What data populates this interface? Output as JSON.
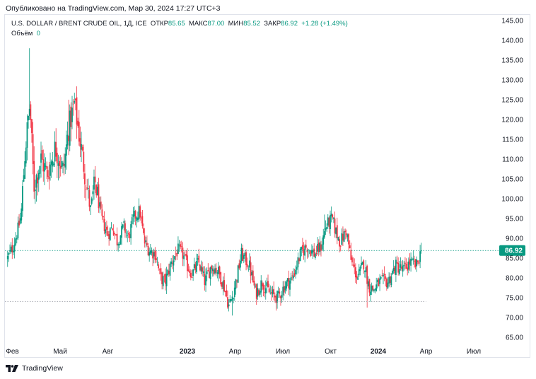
{
  "publication": {
    "text": "Опубликовано на TradingView.com, Мар 30, 2024 17:27 UTC+3"
  },
  "legend": {
    "symbol": "U.S. DOLLAR / BRENT CRUDE OIL, 1Д, ICE",
    "open_label": "ОТКР",
    "open": "85.65",
    "high_label": "МАКС",
    "high": "87.00",
    "low_label": "МИН",
    "low": "85.52",
    "close_label": "ЗАКР",
    "close": "86.92",
    "change": "+1.28 (+1.49%)",
    "volume_label": "Объём",
    "volume": "0"
  },
  "footer": {
    "brand": "TradingView"
  },
  "colors": {
    "up": "#089981",
    "down": "#f23645",
    "price_line": "#089981",
    "axis_text": "#131722"
  },
  "chart_data": {
    "type": "candlestick",
    "title": "U.S. DOLLAR / BRENT CRUDE OIL, 1Д, ICE",
    "ylim": [
      62,
      147
    ],
    "y_ticks": [
      "145.00",
      "140.00",
      "135.00",
      "130.00",
      "125.00",
      "120.00",
      "115.00",
      "110.00",
      "105.00",
      "100.00",
      "95.00",
      "90.00",
      "85.00",
      "80.00",
      "75.00",
      "70.00",
      "65.00"
    ],
    "y_tick_values": [
      145,
      140,
      135,
      130,
      125,
      120,
      115,
      110,
      105,
      100,
      95,
      90,
      85,
      80,
      75,
      70,
      65
    ],
    "x_ticks": [
      {
        "label": "Фев",
        "t": 0.3,
        "bold": false
      },
      {
        "label": "Май",
        "t": 3.3,
        "bold": false
      },
      {
        "label": "Авг",
        "t": 6.3,
        "bold": false
      },
      {
        "label": "2023",
        "t": 11.3,
        "bold": true
      },
      {
        "label": "Апр",
        "t": 14.3,
        "bold": false
      },
      {
        "label": "Июл",
        "t": 17.3,
        "bold": false
      },
      {
        "label": "Окт",
        "t": 20.3,
        "bold": false
      },
      {
        "label": "2024",
        "t": 23.3,
        "bold": true
      },
      {
        "label": "Апр",
        "t": 26.3,
        "bold": false
      },
      {
        "label": "Июл",
        "t": 29.3,
        "bold": false
      }
    ],
    "last_price": 86.92,
    "last_price_label": "86.92",
    "support_level": 74,
    "support_end_t": 26.3,
    "keypoints_t": [
      0.0,
      0.35,
      0.7,
      0.85,
      1.1,
      1.4,
      1.65,
      2.1,
      2.5,
      3.0,
      3.5,
      3.85,
      4.2,
      4.5,
      4.8,
      5.2,
      5.5,
      5.9,
      6.3,
      6.6,
      6.9,
      7.3,
      7.6,
      7.9,
      8.3,
      8.6,
      8.9,
      9.3,
      9.6,
      9.9,
      10.3,
      10.7,
      11.0,
      11.3,
      11.6,
      12.0,
      12.4,
      12.8,
      13.2,
      13.6,
      13.9,
      14.1,
      14.4,
      14.7,
      15.2,
      15.6,
      16.0,
      16.5,
      17.0,
      17.4,
      17.9,
      18.4,
      18.8,
      19.3,
      19.7,
      20.0,
      20.4,
      20.6,
      20.9,
      21.3,
      21.6,
      22.0,
      22.4,
      22.7,
      23.0,
      23.4,
      23.9,
      24.4,
      24.9,
      25.3,
      25.7,
      26.0
    ],
    "keypoints_close": [
      85,
      88,
      93,
      96,
      112,
      124,
      103,
      110,
      106,
      113,
      107,
      118,
      124,
      116,
      108,
      97,
      104,
      95,
      91,
      93,
      89,
      93,
      90,
      95,
      97,
      89,
      87,
      86,
      80,
      79,
      84,
      87,
      86,
      83,
      81,
      84,
      79,
      83,
      82,
      78,
      73,
      75,
      80,
      86,
      83,
      76,
      79,
      76,
      75,
      78,
      80,
      86,
      88,
      86,
      88,
      93,
      95,
      92,
      89,
      92,
      84,
      80,
      84,
      78,
      77,
      79,
      79,
      83,
      82,
      84,
      83,
      86.92
    ],
    "notable_highs": [
      {
        "t": 1.4,
        "high": 138
      },
      {
        "t": 3.85,
        "high": 125
      },
      {
        "t": 19.9,
        "high": 96
      }
    ],
    "notable_lows": [
      {
        "t": 14.1,
        "low": 70.5
      },
      {
        "t": 22.6,
        "low": 72.5
      }
    ],
    "end_t": 26.0
  }
}
